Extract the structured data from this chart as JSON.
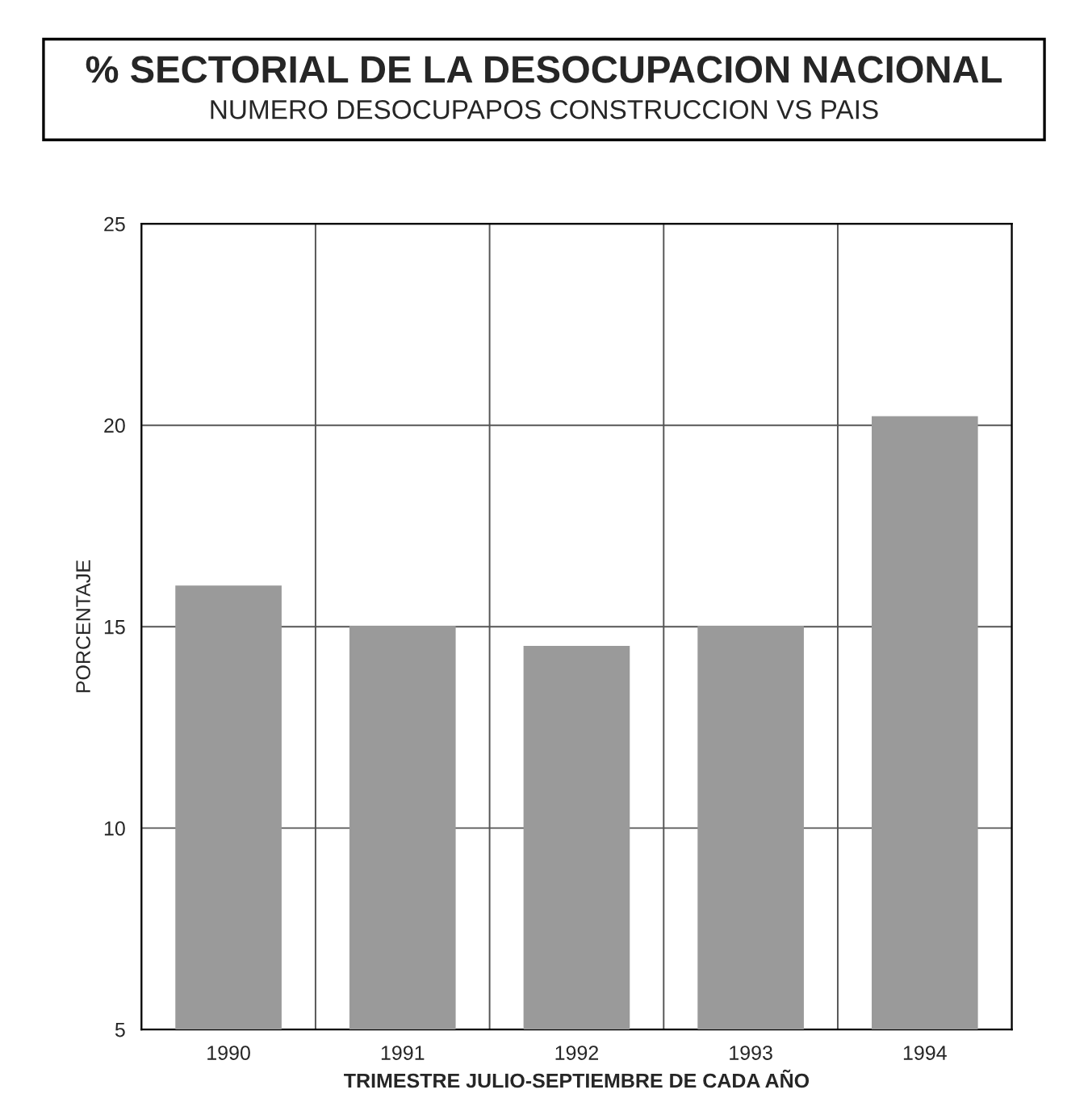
{
  "chart_data": {
    "type": "bar",
    "title": "% SECTORIAL DE LA DESOCUPACION NACIONAL",
    "subtitle": "NUMERO DESOCUPAPOS CONSTRUCCION VS PAIS",
    "xlabel": "TRIMESTRE JULIO-SEPTIEMBRE DE CADA AÑO",
    "ylabel": "PORCENTAJE",
    "categories": [
      "1990",
      "1991",
      "1992",
      "1993",
      "1994"
    ],
    "values": [
      16,
      15,
      14.5,
      15,
      20.2
    ],
    "color": "#9a9a9a",
    "ylim": [
      5,
      25
    ],
    "yticks": [
      5,
      10,
      15,
      20,
      25
    ],
    "grid": true
  }
}
